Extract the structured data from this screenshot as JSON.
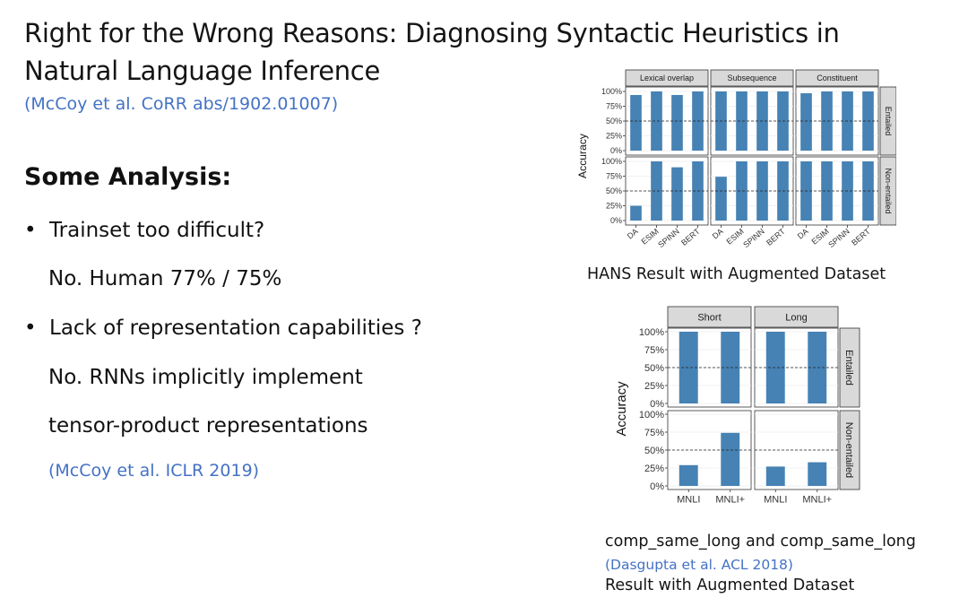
{
  "slide": {
    "title_line1": "Right for the Wrong Reasons: Diagnosing Syntactic Heuristics in",
    "title_line2": "Natural Language Inference",
    "title_citation": "(McCoy et al. CoRR abs/1902.01007)",
    "section_heading": "Some Analysis:",
    "bullets": [
      {
        "text": "Trainset too difficult?",
        "answer_lines": [
          "No. Human 77% / 75%"
        ]
      },
      {
        "text": "Lack of representation capabilities ?",
        "answer_lines": [
          "No. RNNs implicitly implement",
          "tensor-product representations"
        ],
        "citation": "(McCoy et al.  ICLR 2019)"
      }
    ],
    "caption_top": "HANS Result with Augmented Dataset",
    "caption_bottom_line1": "comp_same_long and comp_same_long",
    "caption_bottom_citation": "(Dasgupta et al.  ACL 2018)",
    "caption_bottom_line3": "Result with Augmented Dataset",
    "bar_color": "#4682B4",
    "citation_color": "#4472C4"
  },
  "chart_data": [
    {
      "type": "bar",
      "title": "",
      "ylabel": "Accuracy",
      "ylim": [
        0,
        1
      ],
      "yticks": [
        "0%",
        "25%",
        "50%",
        "75%",
        "100%"
      ],
      "reference_line": 0.5,
      "columns": [
        "Lexical overlap",
        "Subsequence",
        "Constituent"
      ],
      "rows": [
        "Entailed",
        "Non-entailed"
      ],
      "categories": [
        "DA",
        "ESIM",
        "SPINN",
        "BERT"
      ],
      "values": [
        [
          [
            0.94,
            1.0,
            0.94,
            1.0
          ],
          [
            1.0,
            1.0,
            1.0,
            1.0
          ],
          [
            0.97,
            1.0,
            1.0,
            1.0
          ]
        ],
        [
          [
            0.25,
            1.0,
            0.9,
            1.0
          ],
          [
            0.74,
            1.0,
            1.0,
            1.0
          ],
          [
            1.0,
            1.0,
            1.0,
            1.0
          ]
        ]
      ]
    },
    {
      "type": "bar",
      "title": "",
      "ylabel": "Accuracy",
      "ylim": [
        0,
        1
      ],
      "yticks": [
        "0%",
        "25%",
        "50%",
        "75%",
        "100%"
      ],
      "reference_line": 0.5,
      "columns": [
        "Short",
        "Long"
      ],
      "rows": [
        "Entailed",
        "Non-entailed"
      ],
      "categories": [
        "MNLI",
        "MNLI+"
      ],
      "values": [
        [
          [
            1.0,
            1.0
          ],
          [
            1.0,
            1.0
          ]
        ],
        [
          [
            0.29,
            0.74
          ],
          [
            0.27,
            0.33
          ]
        ]
      ]
    }
  ]
}
